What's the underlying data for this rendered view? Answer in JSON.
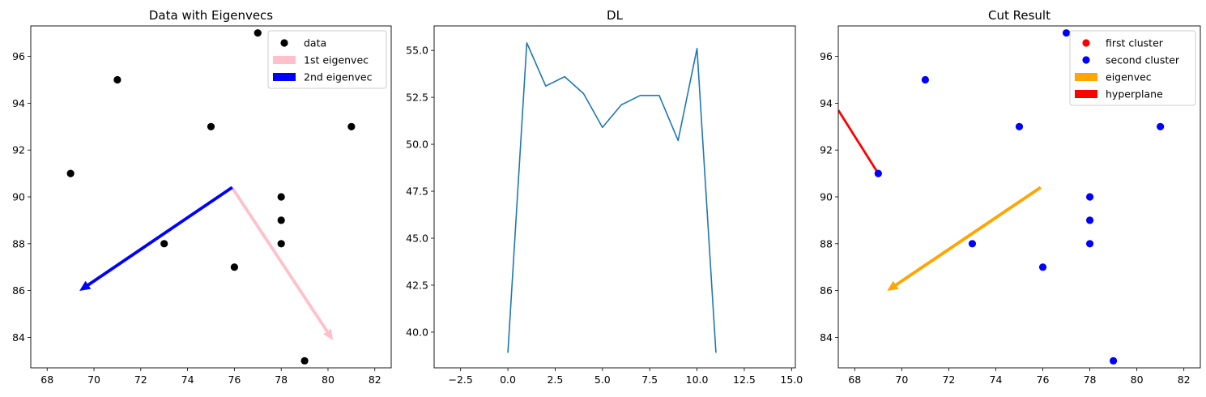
{
  "chart_data": [
    {
      "type": "scatter",
      "title": "Data with Eigenvecs",
      "xlim": [
        67.3,
        82.7
      ],
      "ylim": [
        82.7,
        97.3
      ],
      "xticks": [
        68,
        70,
        72,
        74,
        76,
        78,
        80,
        82
      ],
      "yticks": [
        84,
        86,
        88,
        90,
        92,
        94,
        96
      ],
      "legend_position": "top-right",
      "points": {
        "name": "data",
        "color": "#000000",
        "x": [
          69,
          71,
          73,
          75,
          76,
          77,
          78,
          78,
          78,
          79,
          81
        ],
        "y": [
          91,
          95,
          88,
          93,
          87,
          97,
          90,
          89,
          88,
          83,
          93
        ]
      },
      "arrows": [
        {
          "name": "1st eigenvec",
          "color": "#ffc0cb",
          "x0": 75.9,
          "y0": 90.4,
          "x1": 80.2,
          "y1": 83.9
        },
        {
          "name": "2nd eigenvec",
          "color": "#0000ff",
          "x0": 75.9,
          "y0": 90.4,
          "x1": 69.4,
          "y1": 86.0
        }
      ],
      "legend": [
        {
          "label": "data",
          "kind": "dot",
          "color": "#000000"
        },
        {
          "label": "1st eigenvec",
          "kind": "rect",
          "color": "#ffc0cb"
        },
        {
          "label": "2nd eigenvec",
          "kind": "rect",
          "color": "#0000ff"
        }
      ]
    },
    {
      "type": "line",
      "title": "DL",
      "xlim": [
        -3.9,
        15.2
      ],
      "ylim": [
        38.1,
        56.3
      ],
      "xticks": [
        -2.5,
        0.0,
        2.5,
        5.0,
        7.5,
        10.0,
        12.5,
        15.0
      ],
      "xtick_labels": [
        "−2.5",
        "0.0",
        "2.5",
        "5.0",
        "7.5",
        "10.0",
        "12.5",
        "15.0"
      ],
      "yticks": [
        40.0,
        42.5,
        45.0,
        47.5,
        50.0,
        52.5,
        55.0
      ],
      "ytick_labels": [
        "40.0",
        "42.5",
        "45.0",
        "47.5",
        "50.0",
        "52.5",
        "55.0"
      ],
      "series": [
        {
          "color": "#1f77b4",
          "x": [
            0,
            1,
            2,
            3,
            4,
            5,
            6,
            7,
            8,
            9,
            10,
            11
          ],
          "y": [
            38.9,
            55.4,
            53.1,
            53.6,
            52.7,
            50.9,
            52.1,
            52.6,
            52.6,
            50.2,
            55.1,
            38.9
          ]
        }
      ]
    },
    {
      "type": "scatter",
      "title": "Cut Result",
      "xlim": [
        67.3,
        82.7
      ],
      "ylim": [
        82.7,
        97.3
      ],
      "xticks": [
        68,
        70,
        72,
        74,
        76,
        78,
        80,
        82
      ],
      "yticks": [
        84,
        86,
        88,
        90,
        92,
        94,
        96
      ],
      "legend_position": "top-right",
      "points": {
        "name": "second cluster",
        "color": "#0000ff",
        "x": [
          69,
          71,
          73,
          75,
          76,
          77,
          78,
          78,
          78,
          79,
          81
        ],
        "y": [
          91,
          95,
          88,
          93,
          87,
          97,
          90,
          89,
          88,
          83,
          93
        ]
      },
      "arrows": [
        {
          "name": "eigenvec",
          "color": "#ffa500",
          "x0": 75.9,
          "y0": 90.4,
          "x1": 69.4,
          "y1": 86.0
        }
      ],
      "lines": [
        {
          "name": "hyperplane",
          "color": "#ff0000",
          "x0": 67.3,
          "y0": 93.7,
          "x1": 69.0,
          "y1": 91.0
        }
      ],
      "legend": [
        {
          "label": "first cluster",
          "kind": "dot",
          "color": "#ff0000"
        },
        {
          "label": "second cluster",
          "kind": "dot",
          "color": "#0000ff"
        },
        {
          "label": "eigenvec",
          "kind": "rect",
          "color": "#ffa500"
        },
        {
          "label": "hyperplane",
          "kind": "rect",
          "color": "#ff0000"
        }
      ]
    }
  ]
}
